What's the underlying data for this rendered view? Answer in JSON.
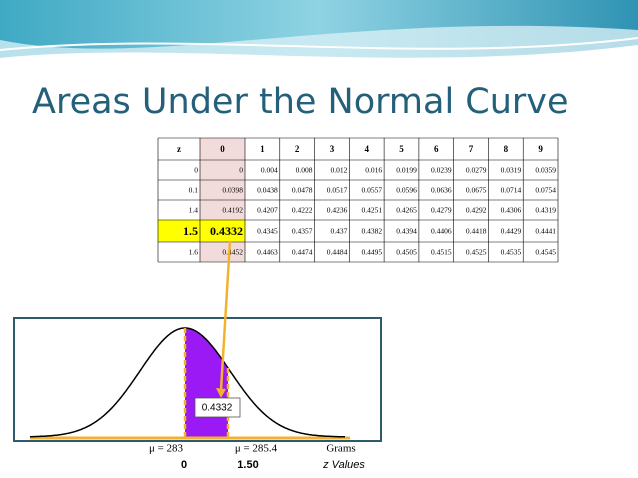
{
  "header": {
    "title": "Areas Under the Normal Curve"
  },
  "table": {
    "columns": [
      "z",
      "0",
      "1",
      "2",
      "3",
      "4",
      "5",
      "6",
      "7",
      "8",
      "9"
    ],
    "rows": [
      [
        "0",
        "0",
        "0.004",
        "0.008",
        "0.012",
        "0.016",
        "0.0199",
        "0.0239",
        "0.0279",
        "0.0319",
        "0.0359"
      ],
      [
        "0.1",
        "0.0398",
        "0.0438",
        "0.0478",
        "0.0517",
        "0.0557",
        "0.0596",
        "0.0636",
        "0.0675",
        "0.0714",
        "0.0754"
      ],
      [
        "1.4",
        "0.4192",
        "0.4207",
        "0.4222",
        "0.4236",
        "0.4251",
        "0.4265",
        "0.4279",
        "0.4292",
        "0.4306",
        "0.4319"
      ],
      [
        "1.5",
        "0.4332",
        "0.4345",
        "0.4357",
        "0.437",
        "0.4382",
        "0.4394",
        "0.4406",
        "0.4418",
        "0.4429",
        "0.4441"
      ],
      [
        "1.6",
        "0.4452",
        "0.4463",
        "0.4474",
        "0.4484",
        "0.4495",
        "0.4505",
        "0.4515",
        "0.4525",
        "0.4535",
        "0.4545"
      ]
    ]
  },
  "figure": {
    "area_label": "0.4332",
    "mean_label": "μ = 283",
    "x_label": "μ = 285.4",
    "unit_label": "Grams",
    "z_mean": "0",
    "z_value": "1.50",
    "z_axis_label": "z Values"
  }
}
